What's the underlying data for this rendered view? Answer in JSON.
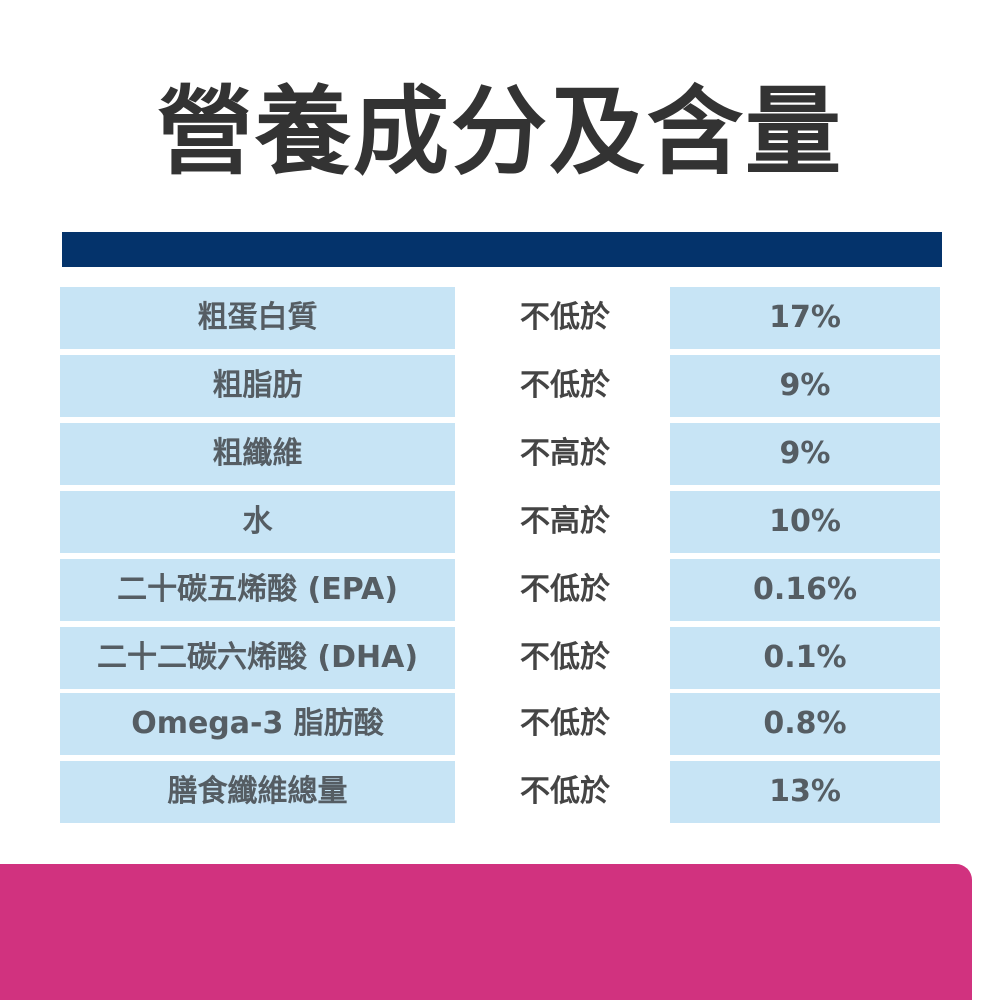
{
  "title": "營養成分及含量",
  "colors": {
    "header_bar": "#04336b",
    "cell_bg": "#c7e4f5",
    "footer_block": "#d1327f",
    "text": "#555d63"
  },
  "rows": [
    {
      "nutrient": "粗蛋白質",
      "condition": "不低於",
      "value": "17%"
    },
    {
      "nutrient": "粗脂肪",
      "condition": "不低於",
      "value": "9%"
    },
    {
      "nutrient": "粗纖維",
      "condition": "不高於",
      "value": "9%"
    },
    {
      "nutrient": "水",
      "condition": "不高於",
      "value": "10%"
    },
    {
      "nutrient": "二十碳五烯酸 (EPA)",
      "condition": "不低於",
      "value": "0.16%"
    },
    {
      "nutrient": "二十二碳六烯酸 (DHA)",
      "condition": "不低於",
      "value": "0.1%"
    },
    {
      "nutrient": "Omega-3 脂肪酸",
      "condition": "不低於",
      "value": "0.8%"
    },
    {
      "nutrient": "膳食纖維總量",
      "condition": "不低於",
      "value": "13%"
    }
  ]
}
